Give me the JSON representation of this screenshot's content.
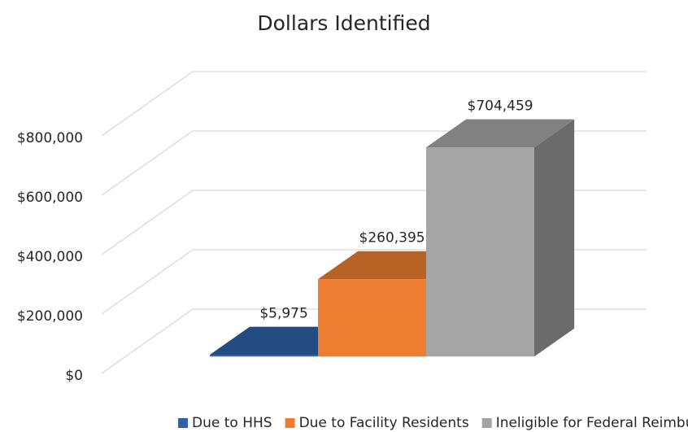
{
  "chart_data": {
    "type": "bar3d",
    "title": "Dollars Identified",
    "series": [
      {
        "name": "Due to HHS",
        "color": "#3060a8",
        "values": [
          5975
        ],
        "value_labels": [
          "$5,975"
        ]
      },
      {
        "name": "Due to Facility Residents",
        "color": "#ed7d31",
        "values": [
          260395
        ],
        "value_labels": [
          "$260,395"
        ]
      },
      {
        "name": "Ineligible for Federal Reimbursement",
        "color": "#a5a5a5",
        "values": [
          704459
        ],
        "value_labels": [
          "$704,459"
        ]
      }
    ],
    "ylim": [
      0,
      800000
    ],
    "yticks": [
      {
        "value": 0,
        "label": "$0"
      },
      {
        "value": 200000,
        "label": "$200,000"
      },
      {
        "value": 400000,
        "label": "$400,000"
      },
      {
        "value": 600000,
        "label": "$600,000"
      },
      {
        "value": 800000,
        "label": "$800,000"
      }
    ],
    "grid": true,
    "legend": "bottom"
  }
}
